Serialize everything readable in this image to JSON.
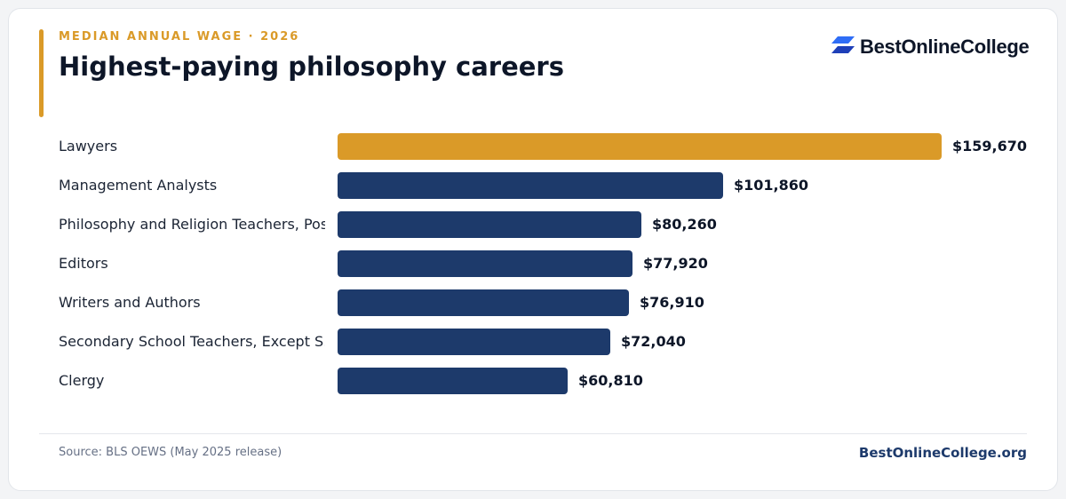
{
  "header": {
    "eyebrow": "MEDIAN ANNUAL WAGE · 2026",
    "title": "Highest-paying philosophy careers"
  },
  "brand": {
    "name": "BestOnlineCollege",
    "icon": "brand-logo-icon"
  },
  "colors": {
    "highlight": "#da9a28",
    "bar": "#1d3a6b",
    "text": "#0d1628"
  },
  "chart_data": {
    "type": "bar",
    "orientation": "horizontal",
    "categories": [
      "Lawyers",
      "Management Analysts",
      "Philosophy and Religion Teachers, Pos...",
      "Editors",
      "Writers and Authors",
      "Secondary School Teachers, Except S...",
      "Clergy"
    ],
    "values": [
      159670,
      101860,
      80260,
      77920,
      76910,
      72040,
      60810
    ],
    "value_labels": [
      "$159,670",
      "$101,860",
      "$80,260",
      "$77,920",
      "$76,910",
      "$72,040",
      "$60,810"
    ],
    "highlight_index": 0,
    "xlim": [
      0,
      159670
    ],
    "title": "Highest-paying philosophy careers",
    "xlabel": "",
    "ylabel": "",
    "grid": false
  },
  "footer": {
    "source": "Source: BLS OEWS (May 2025 release)",
    "site": "BestOnlineCollege.org"
  }
}
